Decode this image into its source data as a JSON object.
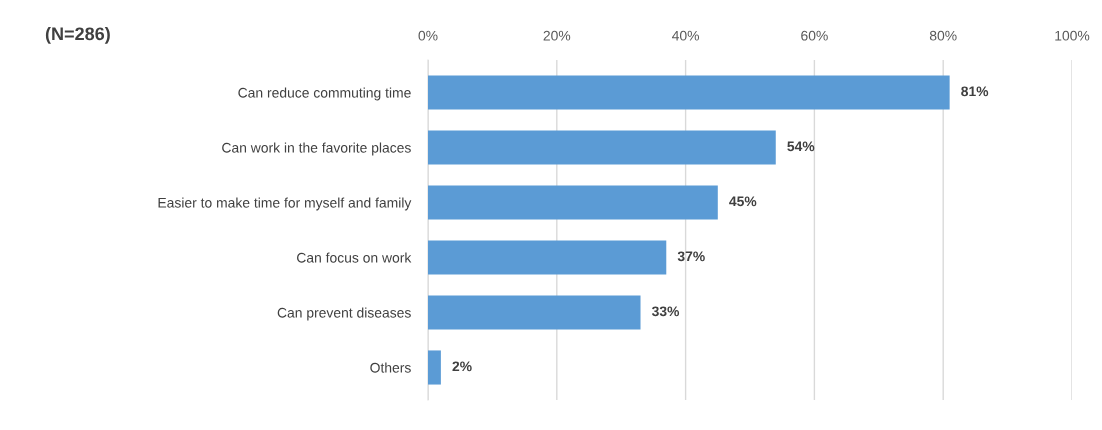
{
  "chart_data": {
    "type": "bar",
    "orientation": "horizontal",
    "title": "(N=286)",
    "categories": [
      "Can reduce commuting time",
      "Can work in the favorite places",
      "Easier to make time for myself and family",
      "Can focus on work",
      "Can prevent diseases",
      "Others"
    ],
    "values": [
      81,
      54,
      45,
      37,
      33,
      2
    ],
    "value_labels": [
      "81%",
      "54%",
      "45%",
      "37%",
      "33%",
      "2%"
    ],
    "color": "#5b9bd5",
    "xlim": [
      0,
      100
    ],
    "xticks": [
      {
        "value": 0,
        "label": "0%"
      },
      {
        "value": 20,
        "label": "20%"
      },
      {
        "value": 40,
        "label": "40%"
      },
      {
        "value": 60,
        "label": "60%"
      },
      {
        "value": 80,
        "label": "80%"
      },
      {
        "value": 100,
        "label": "100%"
      }
    ],
    "grid": "x",
    "legend": false
  }
}
